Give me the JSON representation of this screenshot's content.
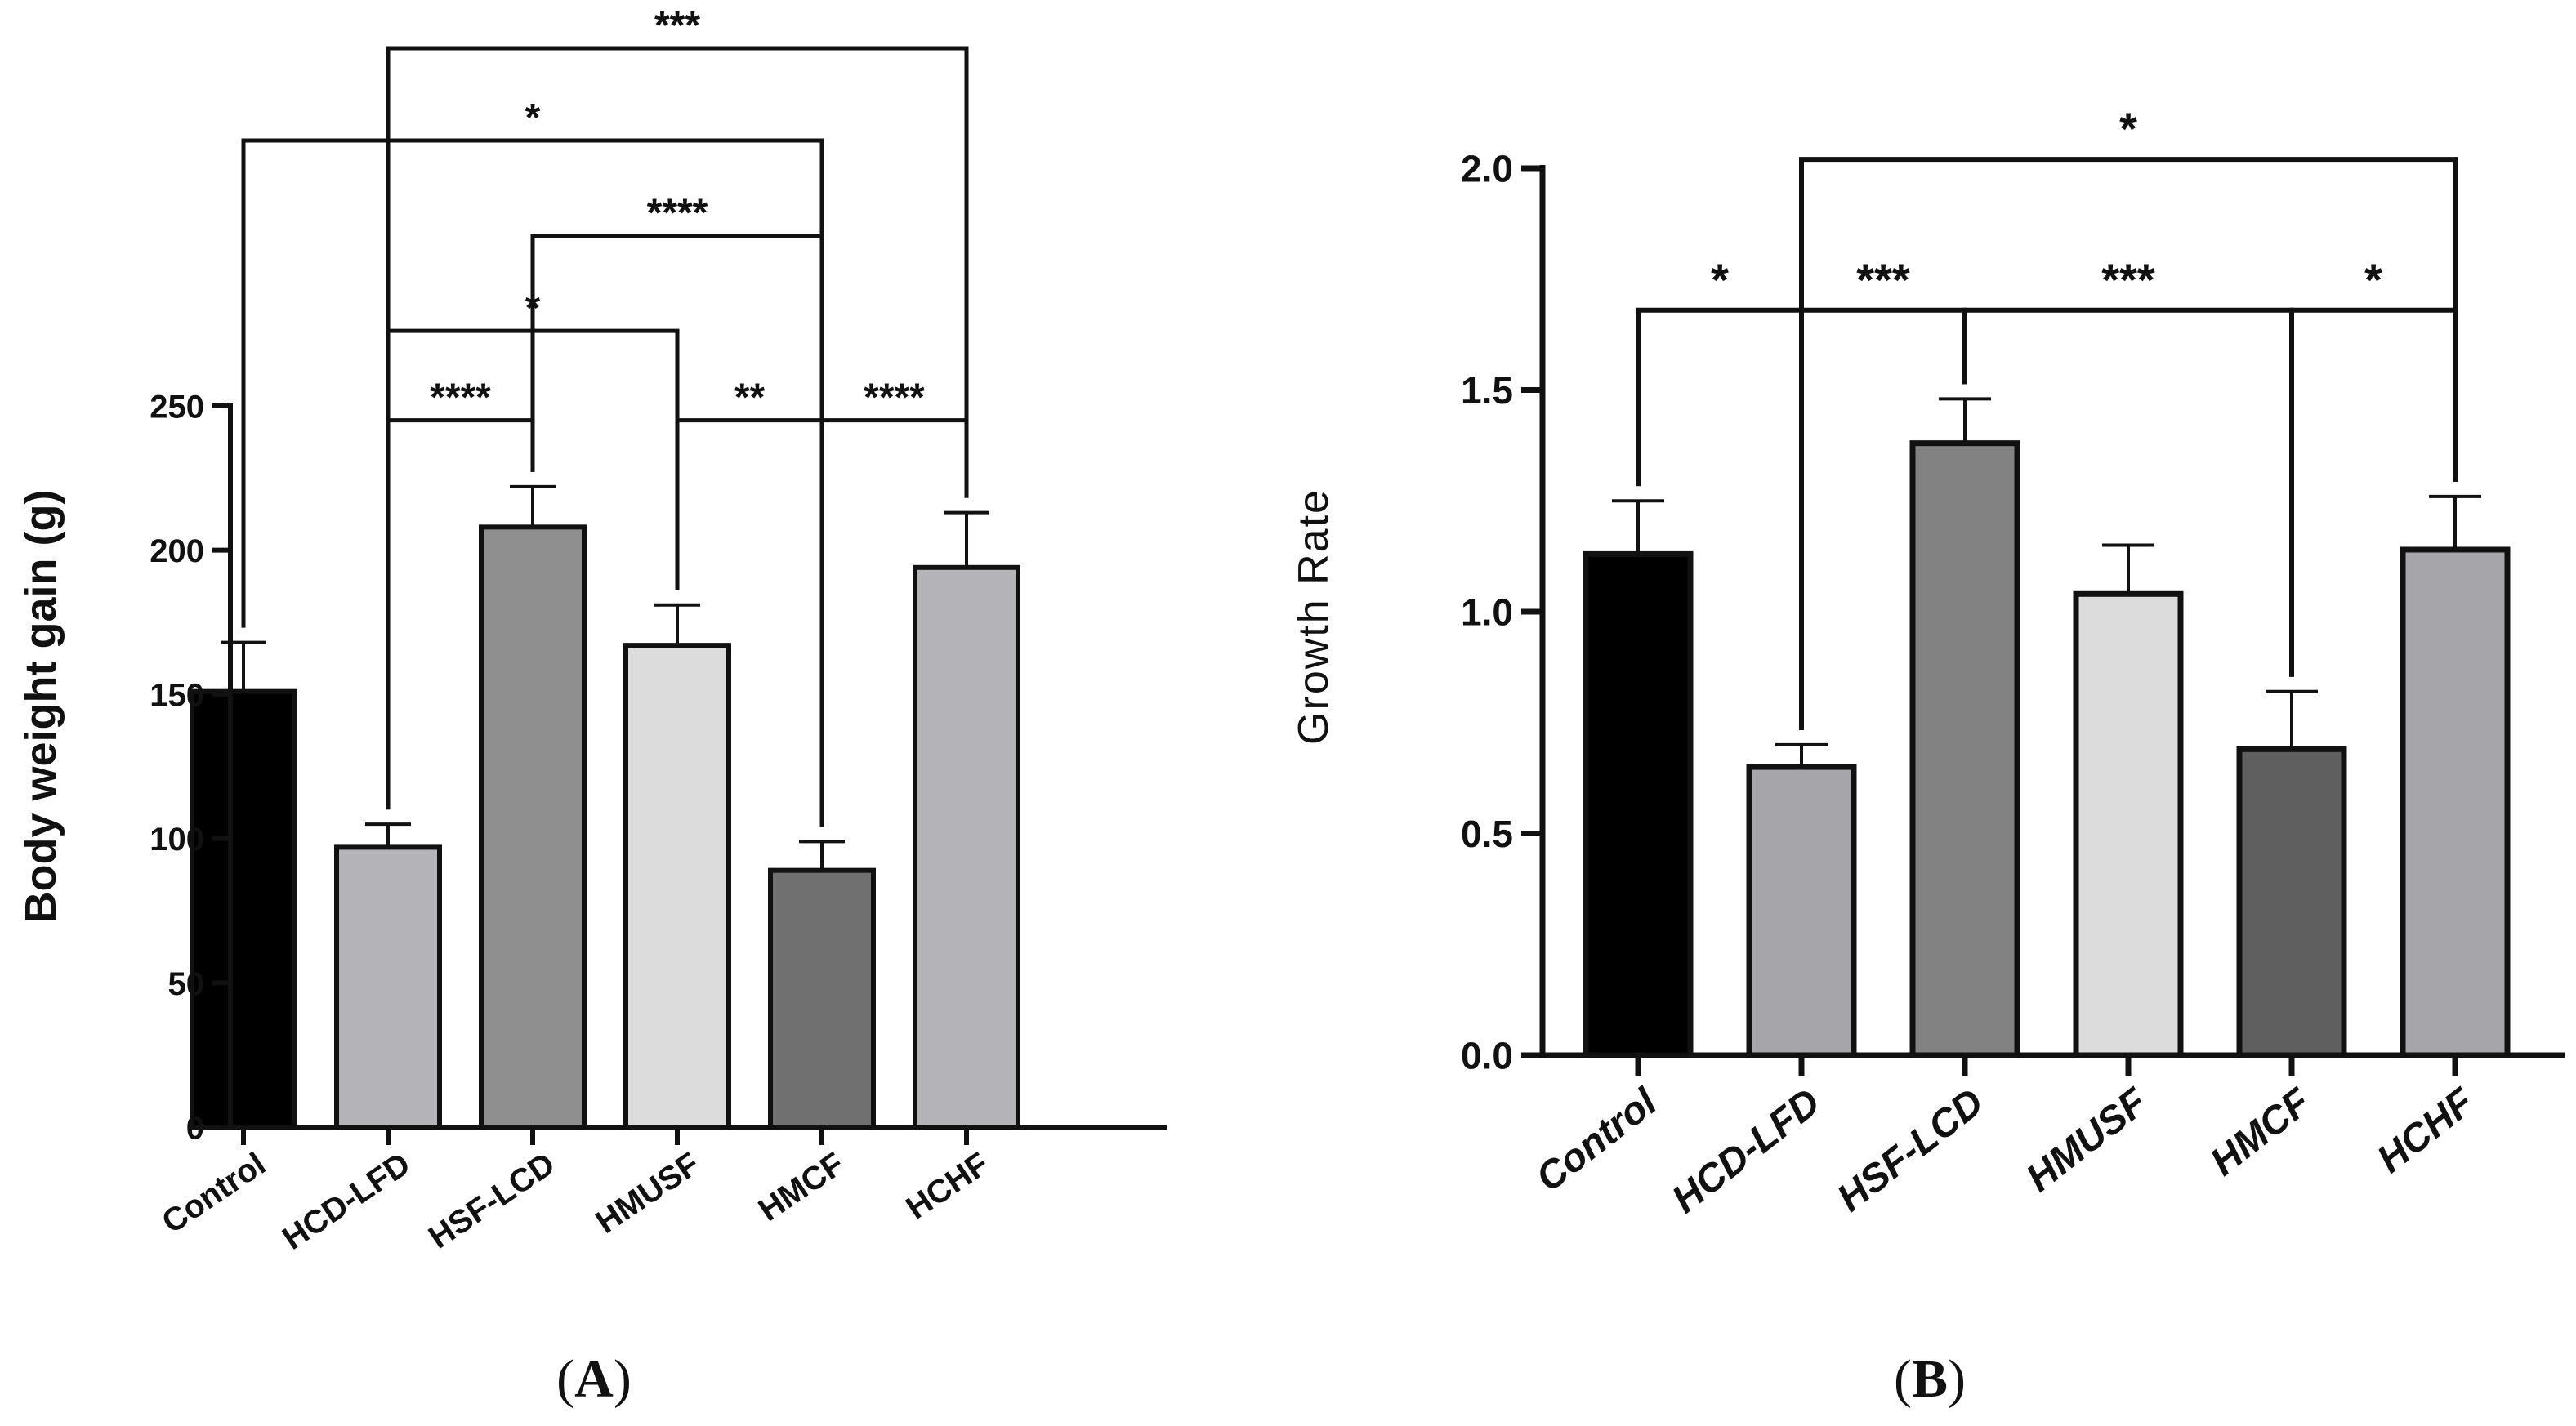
{
  "chart_data": [
    {
      "type": "bar",
      "panel_label": "(A)",
      "panel_letter": "A",
      "ylabel": "Body weight gain (g)",
      "xlabel": "",
      "categories": [
        "Control",
        "HCD-LFD",
        "HSF-LCD",
        "HMUSF",
        "HMCF",
        "HCHF"
      ],
      "values": [
        151,
        97,
        208,
        167,
        89,
        194
      ],
      "errors": [
        17,
        8,
        14,
        14,
        10,
        19
      ],
      "colors": [
        "#000000",
        "#b3b3b8",
        "#8f8f8f",
        "#dcdcdc",
        "#707070",
        "#b3b3b8"
      ],
      "ylim": [
        0,
        250
      ],
      "yticks": [
        0,
        50,
        100,
        150,
        200,
        250
      ],
      "significance": [
        {
          "from": 1,
          "to": 2,
          "label": "****",
          "level": 245
        },
        {
          "from": 3,
          "to": 4,
          "label": "**",
          "level": 245
        },
        {
          "from": 4,
          "to": 5,
          "label": "****",
          "level": 245
        },
        {
          "from": 1,
          "to": 3,
          "label": "*",
          "level": 276
        },
        {
          "from": 2,
          "to": 4,
          "label": "****",
          "level": 309
        },
        {
          "from": 0,
          "to": 4,
          "label": "*",
          "level": 342
        },
        {
          "from": 1,
          "to": 5,
          "label": "***",
          "level": 374
        }
      ]
    },
    {
      "type": "bar",
      "panel_label": "(B)",
      "panel_letter": "B",
      "ylabel": "Growth Rate",
      "xlabel": "",
      "categories": [
        "Control",
        "HCD-LFD",
        "HSF-LCD",
        "HMUSF",
        "HMCF",
        "HCHF"
      ],
      "values": [
        1.13,
        0.65,
        1.38,
        1.04,
        0.69,
        1.14
      ],
      "errors": [
        0.12,
        0.05,
        0.1,
        0.11,
        0.13,
        0.12
      ],
      "colors": [
        "#000000",
        "#a5a5aa",
        "#828282",
        "#dcdcdc",
        "#5f5f5f",
        "#a5a5aa"
      ],
      "ylim": [
        0,
        2.0
      ],
      "yticks": [
        "0.0",
        "0.5",
        "1.0",
        "1.5",
        "2.0"
      ],
      "significance": [
        {
          "from": 0,
          "to": 1,
          "label": "*",
          "level": 1.68
        },
        {
          "from": 1,
          "to": 2,
          "label": "***",
          "level": 1.68
        },
        {
          "from": 2,
          "to": 4,
          "label": "***",
          "level": 1.68
        },
        {
          "from": 4,
          "to": 5,
          "label": "*",
          "level": 1.68
        },
        {
          "from": 1,
          "to": 5,
          "label": "*",
          "level": 2.02
        }
      ]
    }
  ]
}
